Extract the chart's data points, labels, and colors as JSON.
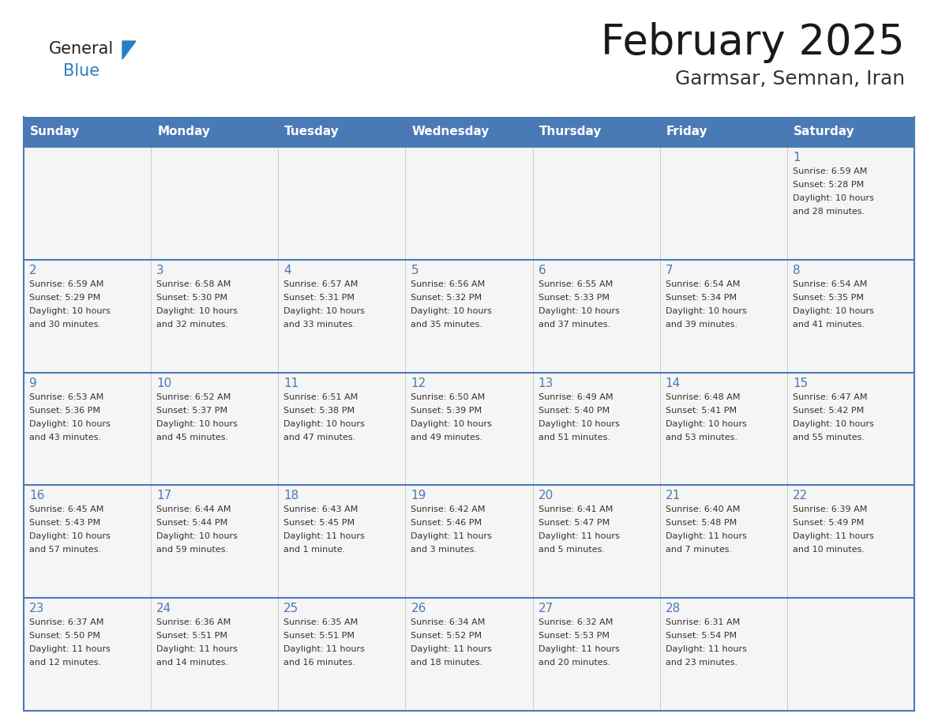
{
  "title": "February 2025",
  "subtitle": "Garmsar, Semnan, Iran",
  "header_bg": "#4a7ab5",
  "header_text_color": "#FFFFFF",
  "cell_bg": "#F5F5F5",
  "border_color": "#4a7ab5",
  "day_num_color": "#4a7ab5",
  "text_color": "#333333",
  "logo_text_color": "#222222",
  "logo_blue_color": "#2a7fc4",
  "triangle_color": "#2a7fc4",
  "days_of_week": [
    "Sunday",
    "Monday",
    "Tuesday",
    "Wednesday",
    "Thursday",
    "Friday",
    "Saturday"
  ],
  "weeks": [
    [
      {
        "day": "",
        "info": ""
      },
      {
        "day": "",
        "info": ""
      },
      {
        "day": "",
        "info": ""
      },
      {
        "day": "",
        "info": ""
      },
      {
        "day": "",
        "info": ""
      },
      {
        "day": "",
        "info": ""
      },
      {
        "day": "1",
        "info": "Sunrise: 6:59 AM\nSunset: 5:28 PM\nDaylight: 10 hours\nand 28 minutes."
      }
    ],
    [
      {
        "day": "2",
        "info": "Sunrise: 6:59 AM\nSunset: 5:29 PM\nDaylight: 10 hours\nand 30 minutes."
      },
      {
        "day": "3",
        "info": "Sunrise: 6:58 AM\nSunset: 5:30 PM\nDaylight: 10 hours\nand 32 minutes."
      },
      {
        "day": "4",
        "info": "Sunrise: 6:57 AM\nSunset: 5:31 PM\nDaylight: 10 hours\nand 33 minutes."
      },
      {
        "day": "5",
        "info": "Sunrise: 6:56 AM\nSunset: 5:32 PM\nDaylight: 10 hours\nand 35 minutes."
      },
      {
        "day": "6",
        "info": "Sunrise: 6:55 AM\nSunset: 5:33 PM\nDaylight: 10 hours\nand 37 minutes."
      },
      {
        "day": "7",
        "info": "Sunrise: 6:54 AM\nSunset: 5:34 PM\nDaylight: 10 hours\nand 39 minutes."
      },
      {
        "day": "8",
        "info": "Sunrise: 6:54 AM\nSunset: 5:35 PM\nDaylight: 10 hours\nand 41 minutes."
      }
    ],
    [
      {
        "day": "9",
        "info": "Sunrise: 6:53 AM\nSunset: 5:36 PM\nDaylight: 10 hours\nand 43 minutes."
      },
      {
        "day": "10",
        "info": "Sunrise: 6:52 AM\nSunset: 5:37 PM\nDaylight: 10 hours\nand 45 minutes."
      },
      {
        "day": "11",
        "info": "Sunrise: 6:51 AM\nSunset: 5:38 PM\nDaylight: 10 hours\nand 47 minutes."
      },
      {
        "day": "12",
        "info": "Sunrise: 6:50 AM\nSunset: 5:39 PM\nDaylight: 10 hours\nand 49 minutes."
      },
      {
        "day": "13",
        "info": "Sunrise: 6:49 AM\nSunset: 5:40 PM\nDaylight: 10 hours\nand 51 minutes."
      },
      {
        "day": "14",
        "info": "Sunrise: 6:48 AM\nSunset: 5:41 PM\nDaylight: 10 hours\nand 53 minutes."
      },
      {
        "day": "15",
        "info": "Sunrise: 6:47 AM\nSunset: 5:42 PM\nDaylight: 10 hours\nand 55 minutes."
      }
    ],
    [
      {
        "day": "16",
        "info": "Sunrise: 6:45 AM\nSunset: 5:43 PM\nDaylight: 10 hours\nand 57 minutes."
      },
      {
        "day": "17",
        "info": "Sunrise: 6:44 AM\nSunset: 5:44 PM\nDaylight: 10 hours\nand 59 minutes."
      },
      {
        "day": "18",
        "info": "Sunrise: 6:43 AM\nSunset: 5:45 PM\nDaylight: 11 hours\nand 1 minute."
      },
      {
        "day": "19",
        "info": "Sunrise: 6:42 AM\nSunset: 5:46 PM\nDaylight: 11 hours\nand 3 minutes."
      },
      {
        "day": "20",
        "info": "Sunrise: 6:41 AM\nSunset: 5:47 PM\nDaylight: 11 hours\nand 5 minutes."
      },
      {
        "day": "21",
        "info": "Sunrise: 6:40 AM\nSunset: 5:48 PM\nDaylight: 11 hours\nand 7 minutes."
      },
      {
        "day": "22",
        "info": "Sunrise: 6:39 AM\nSunset: 5:49 PM\nDaylight: 11 hours\nand 10 minutes."
      }
    ],
    [
      {
        "day": "23",
        "info": "Sunrise: 6:37 AM\nSunset: 5:50 PM\nDaylight: 11 hours\nand 12 minutes."
      },
      {
        "day": "24",
        "info": "Sunrise: 6:36 AM\nSunset: 5:51 PM\nDaylight: 11 hours\nand 14 minutes."
      },
      {
        "day": "25",
        "info": "Sunrise: 6:35 AM\nSunset: 5:51 PM\nDaylight: 11 hours\nand 16 minutes."
      },
      {
        "day": "26",
        "info": "Sunrise: 6:34 AM\nSunset: 5:52 PM\nDaylight: 11 hours\nand 18 minutes."
      },
      {
        "day": "27",
        "info": "Sunrise: 6:32 AM\nSunset: 5:53 PM\nDaylight: 11 hours\nand 20 minutes."
      },
      {
        "day": "28",
        "info": "Sunrise: 6:31 AM\nSunset: 5:54 PM\nDaylight: 11 hours\nand 23 minutes."
      },
      {
        "day": "",
        "info": ""
      }
    ]
  ]
}
